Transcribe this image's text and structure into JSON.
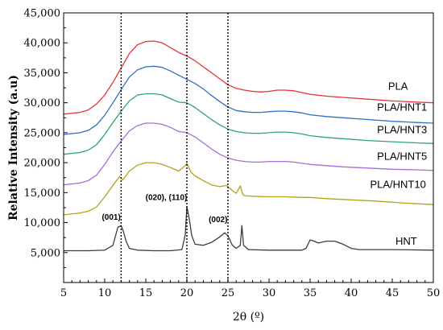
{
  "chart_data": {
    "type": "line",
    "xlabel": "2θ (º)",
    "ylabel": "Relative Intensity (a.u)",
    "xlim": [
      5,
      50
    ],
    "ylim": [
      0,
      45000
    ],
    "xticks": [
      "5",
      "10",
      "15",
      "20",
      "25",
      "30",
      "35",
      "40",
      "45",
      "50"
    ],
    "yticks": [
      "5,000",
      "10,000",
      "15,000",
      "20,000",
      "25,000",
      "30,000",
      "35,000",
      "40,000",
      "45,000"
    ],
    "grid": false,
    "legend": "inline labels",
    "vlines": [
      12,
      20,
      25
    ],
    "annotations": [
      {
        "text": "(001)",
        "x": 10.8,
        "y": 10500
      },
      {
        "text": "(020), (110)",
        "x": 17.5,
        "y": 13800
      },
      {
        "text": "(002)",
        "x": 23.8,
        "y": 10100
      }
    ],
    "series": [
      {
        "name": "PLA",
        "color": "#e8333a",
        "label_x": 45.7,
        "label_y": 32200,
        "points": [
          [
            5,
            28100
          ],
          [
            7,
            28400
          ],
          [
            8,
            28800
          ],
          [
            9,
            29800
          ],
          [
            10,
            31300
          ],
          [
            11,
            33400
          ],
          [
            12,
            35800
          ],
          [
            13,
            38200
          ],
          [
            14,
            39700
          ],
          [
            15,
            40200
          ],
          [
            16,
            40300
          ],
          [
            17,
            40000
          ],
          [
            18,
            39200
          ],
          [
            19,
            38400
          ],
          [
            20,
            37800
          ],
          [
            21,
            37000
          ],
          [
            22,
            36000
          ],
          [
            23,
            35000
          ],
          [
            24,
            34000
          ],
          [
            25,
            33000
          ],
          [
            26,
            32400
          ],
          [
            27,
            32100
          ],
          [
            28,
            31900
          ],
          [
            29,
            31800
          ],
          [
            30,
            31900
          ],
          [
            31,
            32100
          ],
          [
            32,
            32100
          ],
          [
            33,
            32000
          ],
          [
            34,
            31700
          ],
          [
            35,
            31400
          ],
          [
            37,
            31100
          ],
          [
            39,
            30900
          ],
          [
            42,
            30600
          ],
          [
            45,
            30300
          ],
          [
            48,
            30100
          ],
          [
            50,
            30000
          ]
        ]
      },
      {
        "name": "PLA/HNT1",
        "color": "#2f6fc5",
        "label_x": 46.2,
        "label_y": 28700,
        "points": [
          [
            5,
            24700
          ],
          [
            7,
            25000
          ],
          [
            8,
            25400
          ],
          [
            9,
            26300
          ],
          [
            10,
            27900
          ],
          [
            11,
            30000
          ],
          [
            12,
            32200
          ],
          [
            13,
            34300
          ],
          [
            14,
            35500
          ],
          [
            15,
            36000
          ],
          [
            16,
            36100
          ],
          [
            17,
            35900
          ],
          [
            18,
            35300
          ],
          [
            19,
            34600
          ],
          [
            20,
            33900
          ],
          [
            21,
            33200
          ],
          [
            22,
            32300
          ],
          [
            23,
            31200
          ],
          [
            24,
            30200
          ],
          [
            25,
            29300
          ],
          [
            26,
            28700
          ],
          [
            27,
            28500
          ],
          [
            28,
            28400
          ],
          [
            29,
            28400
          ],
          [
            30,
            28500
          ],
          [
            31,
            28600
          ],
          [
            32,
            28600
          ],
          [
            33,
            28500
          ],
          [
            34,
            28300
          ],
          [
            35,
            28000
          ],
          [
            37,
            27700
          ],
          [
            39,
            27500
          ],
          [
            42,
            27200
          ],
          [
            45,
            26900
          ],
          [
            48,
            26700
          ],
          [
            50,
            26600
          ]
        ]
      },
      {
        "name": "PLA/HNT3",
        "color": "#2ea56f",
        "label_x": 46.2,
        "label_y": 24900,
        "points": [
          [
            5,
            21400
          ],
          [
            7,
            21700
          ],
          [
            8,
            22100
          ],
          [
            9,
            23000
          ],
          [
            10,
            24700
          ],
          [
            11,
            26700
          ],
          [
            12,
            28600
          ],
          [
            13,
            30300
          ],
          [
            14,
            31300
          ],
          [
            15,
            31500
          ],
          [
            16,
            31500
          ],
          [
            17,
            31300
          ],
          [
            18,
            30700
          ],
          [
            19,
            30100
          ],
          [
            20,
            30000
          ],
          [
            21,
            29200
          ],
          [
            22,
            28200
          ],
          [
            23,
            27200
          ],
          [
            24,
            26300
          ],
          [
            25,
            25600
          ],
          [
            26,
            25200
          ],
          [
            27,
            25000
          ],
          [
            28,
            24900
          ],
          [
            29,
            24900
          ],
          [
            30,
            25000
          ],
          [
            31,
            25100
          ],
          [
            32,
            25100
          ],
          [
            33,
            25000
          ],
          [
            34,
            24800
          ],
          [
            35,
            24500
          ],
          [
            37,
            24200
          ],
          [
            39,
            24000
          ],
          [
            42,
            23700
          ],
          [
            45,
            23500
          ],
          [
            48,
            23300
          ],
          [
            50,
            23200
          ]
        ]
      },
      {
        "name": "PLA/HNT5",
        "color": "#a56fd6",
        "label_x": 46.2,
        "label_y": 20500,
        "points": [
          [
            5,
            16300
          ],
          [
            7,
            16600
          ],
          [
            8,
            17000
          ],
          [
            9,
            17900
          ],
          [
            10,
            19700
          ],
          [
            11,
            21800
          ],
          [
            12,
            23600
          ],
          [
            13,
            25300
          ],
          [
            14,
            26200
          ],
          [
            15,
            26600
          ],
          [
            16,
            26600
          ],
          [
            17,
            26400
          ],
          [
            18,
            25900
          ],
          [
            19,
            25200
          ],
          [
            20,
            25000
          ],
          [
            21,
            24300
          ],
          [
            22,
            23300
          ],
          [
            23,
            22300
          ],
          [
            24,
            21400
          ],
          [
            25,
            20800
          ],
          [
            26,
            20400
          ],
          [
            27,
            20200
          ],
          [
            28,
            20100
          ],
          [
            29,
            20100
          ],
          [
            30,
            20200
          ],
          [
            31,
            20200
          ],
          [
            32,
            20200
          ],
          [
            33,
            20100
          ],
          [
            34,
            19900
          ],
          [
            35,
            19700
          ],
          [
            37,
            19500
          ],
          [
            39,
            19300
          ],
          [
            42,
            19100
          ],
          [
            45,
            18900
          ],
          [
            48,
            18800
          ],
          [
            50,
            18700
          ]
        ]
      },
      {
        "name": "PLA/HNT10",
        "color": "#b5a319",
        "label_x": 45.7,
        "label_y": 15800,
        "points": [
          [
            5,
            11300
          ],
          [
            7,
            11600
          ],
          [
            8,
            11900
          ],
          [
            9,
            12600
          ],
          [
            10,
            14300
          ],
          [
            11,
            16200
          ],
          [
            11.8,
            17700
          ],
          [
            12.2,
            17100
          ],
          [
            13,
            18600
          ],
          [
            14,
            19600
          ],
          [
            15,
            20000
          ],
          [
            16,
            20000
          ],
          [
            17,
            19700
          ],
          [
            18,
            19200
          ],
          [
            19,
            18600
          ],
          [
            19.8,
            19500
          ],
          [
            20,
            19900
          ],
          [
            20.5,
            18400
          ],
          [
            21,
            17800
          ],
          [
            22,
            17000
          ],
          [
            23,
            16300
          ],
          [
            24,
            16000
          ],
          [
            24.8,
            16200
          ],
          [
            25.5,
            15400
          ],
          [
            26,
            14900
          ],
          [
            26.5,
            16100
          ],
          [
            26.8,
            14700
          ],
          [
            27,
            14500
          ],
          [
            28,
            14400
          ],
          [
            30,
            14300
          ],
          [
            32,
            14300
          ],
          [
            34,
            14200
          ],
          [
            35,
            14200
          ],
          [
            37,
            14000
          ],
          [
            40,
            13800
          ],
          [
            43,
            13600
          ],
          [
            46,
            13300
          ],
          [
            50,
            13000
          ]
        ]
      },
      {
        "name": "HNT",
        "color": "#3d3d3d",
        "label_x": 46.7,
        "label_y": 6300,
        "points": [
          [
            5,
            5300
          ],
          [
            8,
            5300
          ],
          [
            10,
            5400
          ],
          [
            11,
            6200
          ],
          [
            11.6,
            9200
          ],
          [
            12,
            9500
          ],
          [
            12.3,
            8400
          ],
          [
            12.6,
            6900
          ],
          [
            13,
            5700
          ],
          [
            14,
            5400
          ],
          [
            16,
            5300
          ],
          [
            18,
            5300
          ],
          [
            19.4,
            5500
          ],
          [
            19.8,
            8000
          ],
          [
            20,
            12700
          ],
          [
            20.3,
            10500
          ],
          [
            20.6,
            7800
          ],
          [
            21,
            6400
          ],
          [
            22,
            6200
          ],
          [
            23,
            6700
          ],
          [
            24,
            7600
          ],
          [
            24.6,
            8300
          ],
          [
            25,
            7800
          ],
          [
            25.5,
            6300
          ],
          [
            26,
            5700
          ],
          [
            26.5,
            6200
          ],
          [
            26.7,
            9500
          ],
          [
            26.9,
            6200
          ],
          [
            27.5,
            5500
          ],
          [
            30,
            5400
          ],
          [
            34,
            5400
          ],
          [
            34.5,
            5700
          ],
          [
            35,
            7100
          ],
          [
            35.5,
            6900
          ],
          [
            36,
            6600
          ],
          [
            37,
            6900
          ],
          [
            38,
            6900
          ],
          [
            39,
            6400
          ],
          [
            40,
            5700
          ],
          [
            41,
            5500
          ],
          [
            45,
            5500
          ],
          [
            50,
            5400
          ]
        ]
      }
    ]
  }
}
